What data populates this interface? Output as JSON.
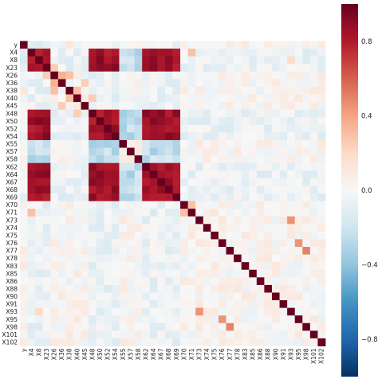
{
  "chart_data": {
    "type": "heatmap",
    "title": "",
    "xlabel": "",
    "ylabel": "",
    "labels": [
      "y",
      "X4",
      "X8",
      "X23",
      "X26",
      "X36",
      "X38",
      "X40",
      "X45",
      "X48",
      "X50",
      "X52",
      "X54",
      "X55",
      "X57",
      "X58",
      "X62",
      "X64",
      "X67",
      "X68",
      "X69",
      "X70",
      "X71",
      "X73",
      "X74",
      "X75",
      "X76",
      "X77",
      "X78",
      "X83",
      "X85",
      "X86",
      "X88",
      "X90",
      "X91",
      "X93",
      "X95",
      "X98",
      "X101",
      "X102"
    ],
    "value_range": [
      -1,
      1
    ],
    "colorbar": {
      "ticks": [
        -0.8,
        -0.4,
        0.0,
        0.4,
        0.8
      ],
      "tick_labels": [
        "−0.8",
        "−0.4",
        "0.0",
        "0.4",
        "0.8"
      ],
      "colors": [
        "#053061",
        "#2166ac",
        "#4393c3",
        "#92c5de",
        "#d1e5f0",
        "#f7f7f7",
        "#fddbc7",
        "#f4a582",
        "#d6604d",
        "#b2182b",
        "#67001f"
      ]
    },
    "grid": false,
    "groups": {
      "A": [
        "X4",
        "X8",
        "X23",
        "X48",
        "X50",
        "X52",
        "X54",
        "X62",
        "X64",
        "X67",
        "X68",
        "X69"
      ],
      "B": [
        "X55",
        "X57",
        "X58"
      ]
    },
    "group_correlation": {
      "A_A": 0.85,
      "A_B": -0.25,
      "B_B": 0.1,
      "A_other": -0.06,
      "other_other": 0.02,
      "diagonal": 1.0
    },
    "notable_pairs": [
      {
        "a": "X26",
        "b": "X36",
        "value": 0.35
      },
      {
        "a": "X26",
        "b": "X38",
        "value": 0.3
      },
      {
        "a": "X38",
        "b": "X40",
        "value": 0.3
      },
      {
        "a": "X36",
        "b": "X45",
        "value": 0.25
      },
      {
        "a": "X4",
        "b": "X71",
        "value": 0.3
      },
      {
        "a": "X70",
        "b": "X71",
        "value": 0.3
      },
      {
        "a": "X93",
        "b": "X73",
        "value": 0.45
      },
      {
        "a": "X95",
        "b": "X76",
        "value": 0.45
      },
      {
        "a": "X98",
        "b": "X77",
        "value": 0.5
      },
      {
        "a": "X23",
        "b": "X26",
        "value": 0.25
      },
      {
        "a": "X93",
        "b": "X8",
        "value": 0.2
      },
      {
        "a": "X48",
        "b": "X55",
        "value": -0.35
      },
      {
        "a": "X64",
        "b": "X57",
        "value": -0.35
      },
      {
        "a": "X40",
        "b": "X48",
        "value": 0.25
      }
    ]
  }
}
